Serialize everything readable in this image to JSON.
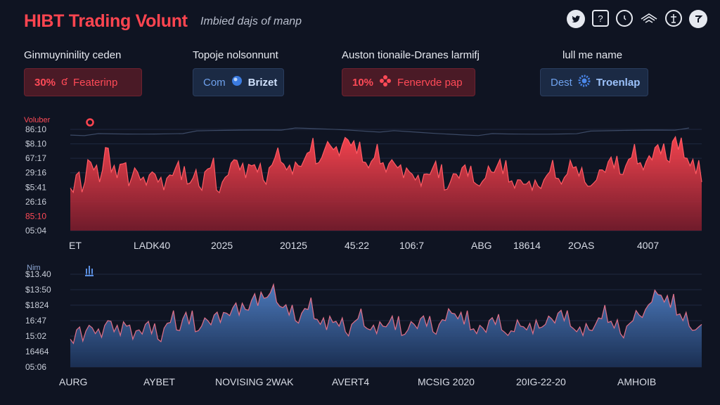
{
  "header": {
    "title": "HIBT Trading Volunt",
    "subtitle": "Imbied dajs of manp",
    "icons": [
      "twitter-icon",
      "share-icon",
      "clock-icon",
      "layers-icon",
      "user-icon",
      "help-icon"
    ]
  },
  "cards": [
    {
      "label": "Ginmuyninility ceden",
      "pct": "30%",
      "value": "Featerinp",
      "style": "red"
    },
    {
      "label": "Topoje nolsonnunt",
      "pct": "Com",
      "value": "Brizet",
      "style": "blue"
    },
    {
      "label": "Auston tionaile-Dranes larmifj",
      "pct": "10%",
      "value": "Fenervde pap",
      "style": "red"
    },
    {
      "label": "lull me name",
      "pct": "Dest",
      "value": "Troenlap",
      "style": "blue"
    }
  ],
  "colors": {
    "background": "#0f1422",
    "red": "#ff4550",
    "blue": "#4a77b8"
  },
  "chart_data": [
    {
      "type": "area",
      "ylabel": "Voluber",
      "y_ticks": [
        "86:10",
        "$8.10",
        "67:17",
        "29:16",
        "$5:41",
        "26:16",
        "85:10",
        "05:04"
      ],
      "x_ticks": [
        "ET",
        "LADK40",
        "2025",
        "20125",
        "45:22",
        "106:7",
        "ABG",
        "18614",
        "2OAS",
        "4007"
      ],
      "ylim": [
        0,
        100
      ],
      "series": [
        {
          "name": "",
          "values": [
            42,
            55,
            38,
            70,
            60,
            48,
            82,
            58,
            52,
            66,
            44,
            62,
            50,
            45,
            58,
            48,
            40,
            55,
            62,
            50,
            46,
            52,
            44,
            58,
            62,
            40,
            48,
            55,
            70,
            60,
            52,
            64,
            58,
            50,
            62,
            72,
            68,
            60,
            56,
            64,
            70,
            78,
            66,
            72,
            88,
            80,
            74,
            92,
            84,
            76,
            68,
            62,
            72,
            66,
            58,
            70,
            62,
            52,
            58,
            50,
            44,
            56,
            62,
            52,
            40,
            48,
            56,
            62,
            54,
            48,
            44,
            52,
            58,
            64,
            56,
            48,
            42,
            50,
            46,
            40,
            44,
            50,
            58,
            52,
            46,
            56,
            62,
            54,
            48,
            44,
            50,
            60,
            68,
            62,
            56,
            64,
            72,
            66,
            60,
            74,
            82,
            76,
            70,
            88,
            80,
            72,
            64,
            56,
            48
          ]
        }
      ]
    },
    {
      "type": "area",
      "ylabel": "Nim",
      "y_ticks": [
        "$13.40",
        "$13:50",
        "$1824",
        "16:47",
        "15:02",
        "16464",
        "05:06"
      ],
      "x_ticks": [
        "AURG",
        "AYBET",
        "NOVISING 2WAK",
        "AVERT4",
        "MCSIG 2020",
        "20IG-22-20",
        "AMHOIB"
      ],
      "ylim": [
        0,
        100
      ],
      "series": [
        {
          "name": "",
          "values": [
            30,
            40,
            28,
            45,
            36,
            32,
            50,
            38,
            34,
            44,
            30,
            40,
            46,
            36,
            30,
            42,
            48,
            40,
            52,
            46,
            38,
            44,
            50,
            56,
            48,
            58,
            64,
            56,
            62,
            72,
            66,
            74,
            80,
            70,
            64,
            56,
            50,
            58,
            62,
            52,
            46,
            40,
            48,
            44,
            38,
            46,
            52,
            44,
            40,
            36,
            44,
            48,
            40,
            34,
            40,
            46,
            52,
            44,
            38,
            46,
            50,
            58,
            52,
            46,
            40,
            36,
            42,
            50,
            46,
            40,
            34,
            38,
            44,
            40,
            36,
            42,
            46,
            52,
            58,
            50,
            44,
            38,
            34,
            40,
            46,
            52,
            48,
            42,
            36,
            44,
            50,
            56,
            62,
            70,
            78,
            70,
            64,
            56,
            50,
            44,
            40,
            46
          ]
        }
      ]
    }
  ]
}
